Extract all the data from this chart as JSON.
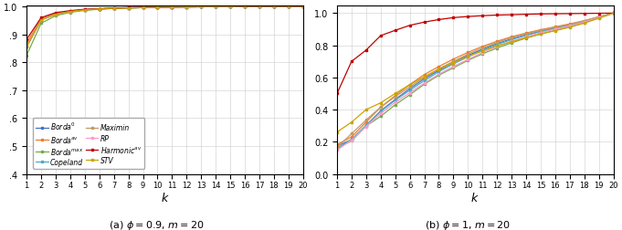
{
  "k": [
    1,
    2,
    3,
    4,
    5,
    6,
    7,
    8,
    9,
    10,
    11,
    12,
    13,
    14,
    15,
    16,
    17,
    18,
    19,
    20
  ],
  "phi09": {
    "Borda0": [
      0.855,
      0.952,
      0.972,
      0.982,
      0.988,
      0.991,
      0.994,
      0.995,
      0.996,
      0.997,
      0.998,
      0.998,
      0.999,
      0.999,
      0.999,
      1.0,
      1.0,
      1.0,
      1.0,
      1.0
    ],
    "Bordaav": [
      0.868,
      0.956,
      0.975,
      0.983,
      0.988,
      0.991,
      0.994,
      0.995,
      0.996,
      0.997,
      0.998,
      0.998,
      0.999,
      0.999,
      0.999,
      1.0,
      1.0,
      1.0,
      1.0,
      1.0
    ],
    "Bordamax": [
      0.825,
      0.94,
      0.967,
      0.979,
      0.986,
      0.99,
      0.993,
      0.994,
      0.996,
      0.997,
      0.998,
      0.998,
      0.999,
      0.999,
      0.999,
      1.0,
      1.0,
      1.0,
      1.0,
      1.0
    ],
    "Copeland": [
      0.856,
      0.952,
      0.972,
      0.982,
      0.988,
      0.991,
      0.994,
      0.995,
      0.996,
      0.997,
      0.998,
      0.998,
      0.999,
      0.999,
      0.999,
      1.0,
      1.0,
      1.0,
      1.0,
      1.0
    ],
    "Maximin": [
      0.858,
      0.953,
      0.973,
      0.982,
      0.988,
      0.991,
      0.994,
      0.995,
      0.996,
      0.997,
      0.998,
      0.998,
      0.999,
      0.999,
      0.999,
      1.0,
      1.0,
      1.0,
      1.0,
      1.0
    ],
    "RP": [
      0.855,
      0.952,
      0.972,
      0.982,
      0.988,
      0.991,
      0.994,
      0.995,
      0.996,
      0.997,
      0.998,
      0.998,
      0.999,
      0.999,
      0.999,
      1.0,
      1.0,
      1.0,
      1.0,
      1.0
    ],
    "Harmonicav": [
      0.882,
      0.96,
      0.978,
      0.985,
      0.99,
      0.992,
      0.994,
      0.996,
      0.997,
      0.997,
      0.998,
      0.999,
      0.999,
      0.999,
      0.999,
      1.0,
      1.0,
      1.0,
      1.0,
      1.0
    ],
    "STV": [
      0.855,
      0.952,
      0.972,
      0.982,
      0.988,
      0.991,
      0.993,
      0.995,
      0.996,
      0.997,
      0.998,
      0.998,
      0.999,
      0.999,
      0.999,
      1.0,
      1.0,
      1.0,
      1.0,
      1.0
    ]
  },
  "phi1": {
    "Borda0": [
      0.172,
      0.213,
      0.302,
      0.392,
      0.463,
      0.53,
      0.592,
      0.644,
      0.693,
      0.737,
      0.775,
      0.81,
      0.84,
      0.865,
      0.887,
      0.907,
      0.926,
      0.948,
      0.975,
      1.0
    ],
    "Bordaav": [
      0.182,
      0.23,
      0.322,
      0.415,
      0.487,
      0.556,
      0.618,
      0.668,
      0.714,
      0.756,
      0.793,
      0.825,
      0.853,
      0.876,
      0.897,
      0.915,
      0.933,
      0.953,
      0.977,
      1.0
    ],
    "Bordamax": [
      0.16,
      0.205,
      0.298,
      0.358,
      0.43,
      0.492,
      0.558,
      0.614,
      0.66,
      0.706,
      0.747,
      0.783,
      0.815,
      0.845,
      0.87,
      0.893,
      0.915,
      0.94,
      0.971,
      1.0
    ],
    "Copeland": [
      0.155,
      0.215,
      0.302,
      0.388,
      0.458,
      0.52,
      0.58,
      0.636,
      0.684,
      0.728,
      0.769,
      0.805,
      0.835,
      0.862,
      0.885,
      0.905,
      0.925,
      0.948,
      0.975,
      1.0
    ],
    "Maximin": [
      0.165,
      0.25,
      0.335,
      0.415,
      0.48,
      0.542,
      0.6,
      0.654,
      0.7,
      0.745,
      0.783,
      0.818,
      0.848,
      0.872,
      0.893,
      0.911,
      0.93,
      0.952,
      0.977,
      1.0
    ],
    "RP": [
      0.148,
      0.21,
      0.295,
      0.375,
      0.445,
      0.505,
      0.565,
      0.62,
      0.668,
      0.712,
      0.755,
      0.793,
      0.825,
      0.853,
      0.878,
      0.9,
      0.92,
      0.945,
      0.973,
      1.0
    ],
    "Harmonicav": [
      0.5,
      0.7,
      0.77,
      0.86,
      0.893,
      0.924,
      0.944,
      0.96,
      0.972,
      0.979,
      0.984,
      0.988,
      0.99,
      0.993,
      0.995,
      0.996,
      0.997,
      0.998,
      0.999,
      1.0
    ],
    "STV": [
      0.26,
      0.322,
      0.4,
      0.442,
      0.5,
      0.555,
      0.605,
      0.651,
      0.692,
      0.73,
      0.765,
      0.796,
      0.822,
      0.847,
      0.87,
      0.891,
      0.912,
      0.938,
      0.968,
      1.0
    ]
  },
  "colors": {
    "Borda0": "#4472C4",
    "Bordaav": "#ED7D31",
    "Bordamax": "#70AD47",
    "Copeland": "#4BACC6",
    "Maximin": "#C09B62",
    "RP": "#FF99CC",
    "Harmonicav": "#C00000",
    "STV": "#CCA300"
  },
  "labels": {
    "Borda0": "Borda$^0$",
    "Bordaav": "Borda$^{av}$",
    "Bordamax": "Borda$^{max}$",
    "Copeland": "Copeland",
    "Maximin": "Maximin",
    "RP": "RP",
    "Harmonicav": "Harmonic$^{av}$",
    "STV": "STV"
  },
  "caption_a": "(a) $\\phi = 0.9$, $m = 20$",
  "caption_b": "(b) $\\phi = 1$, $m = 20$",
  "yticks_09": [
    0.4,
    0.5,
    0.6,
    0.7,
    0.8,
    0.9,
    1.0
  ],
  "yticks_1": [
    0.0,
    0.2,
    0.4,
    0.6,
    0.8,
    1.0
  ]
}
